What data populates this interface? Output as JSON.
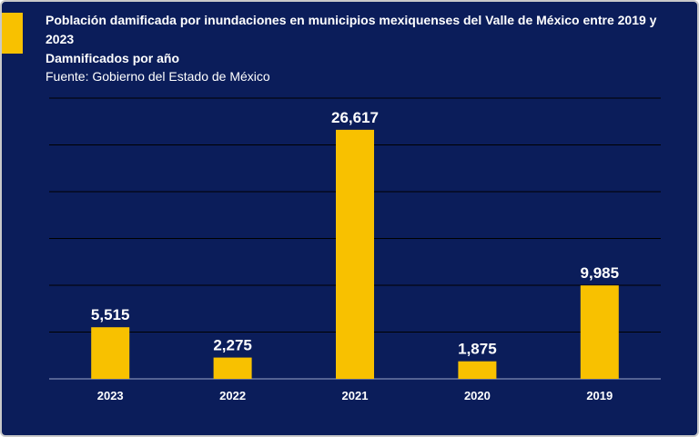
{
  "header": {
    "title": "Población damificada por inundaciones en municipios mexiquenses del Valle de México entre 2019 y 2023",
    "subtitle": "Damnificados por año",
    "source": "Fuente: Gobierno del Estado de México"
  },
  "colors": {
    "background": "#0b1d5a",
    "bar": "#f8c100",
    "text": "#ffffff",
    "grid": "#000000"
  },
  "chart_data": {
    "type": "bar",
    "categories": [
      "2023",
      "2022",
      "2021",
      "2020",
      "2019"
    ],
    "values": [
      5515,
      2275,
      26617,
      1875,
      9985
    ],
    "value_labels": [
      "5,515",
      "2,275",
      "26,617",
      "1,875",
      "9,985"
    ],
    "ylim": [
      0,
      30000
    ],
    "grid": true,
    "legend": "none"
  }
}
